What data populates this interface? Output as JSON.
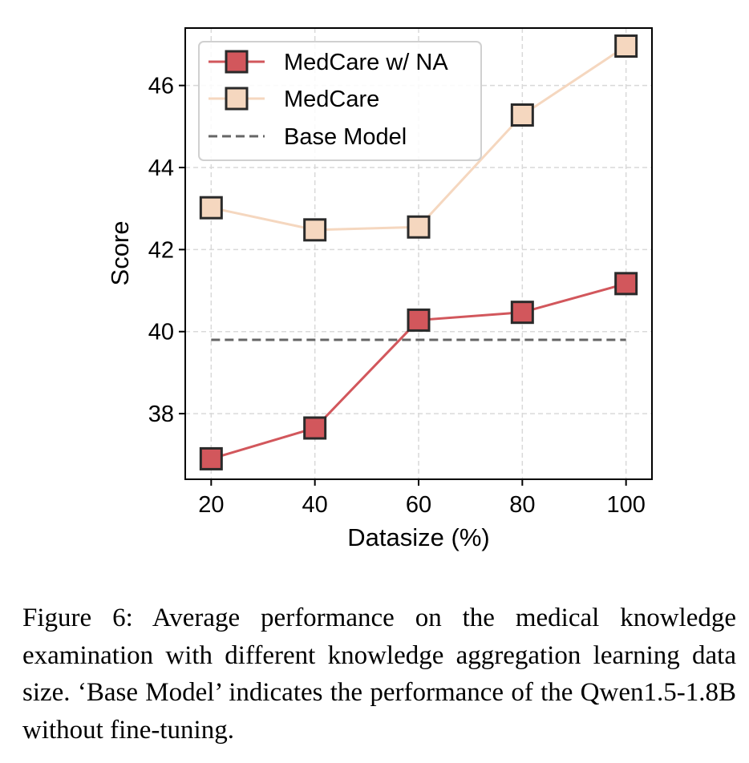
{
  "chart_data": {
    "type": "line",
    "xlabel": "Datasize (%)",
    "ylabel": "Score",
    "x": [
      20,
      40,
      60,
      80,
      100
    ],
    "xticks": [
      "20",
      "40",
      "60",
      "80",
      "100"
    ],
    "yticks": [
      "38",
      "40",
      "42",
      "44",
      "46"
    ],
    "ytick_values": [
      38,
      40,
      42,
      44,
      46
    ],
    "xlim": [
      15,
      105
    ],
    "ylim": [
      36.4,
      47.4
    ],
    "grid": true,
    "legend_position": "top-left",
    "series": [
      {
        "name": "MedCare w/ NA",
        "values": [
          36.9,
          37.65,
          40.28,
          40.47,
          41.17
        ],
        "color": "#d2575c",
        "marker": "square"
      },
      {
        "name": "MedCare",
        "values": [
          43.02,
          42.48,
          42.55,
          45.28,
          46.96
        ],
        "color": "#f5d7bf",
        "marker": "square"
      },
      {
        "name": "Base Model",
        "values": [
          39.8,
          39.8,
          39.8,
          39.8,
          39.8
        ],
        "color": "#666666",
        "marker": "none",
        "style": "dashed"
      }
    ]
  },
  "caption": "Figure 6: Average performance on the medical knowledge examination with different knowledge aggregation learning data size. ‘Base Model’ indicates the performance of the Qwen1.5-1.8B without fine-tuning."
}
